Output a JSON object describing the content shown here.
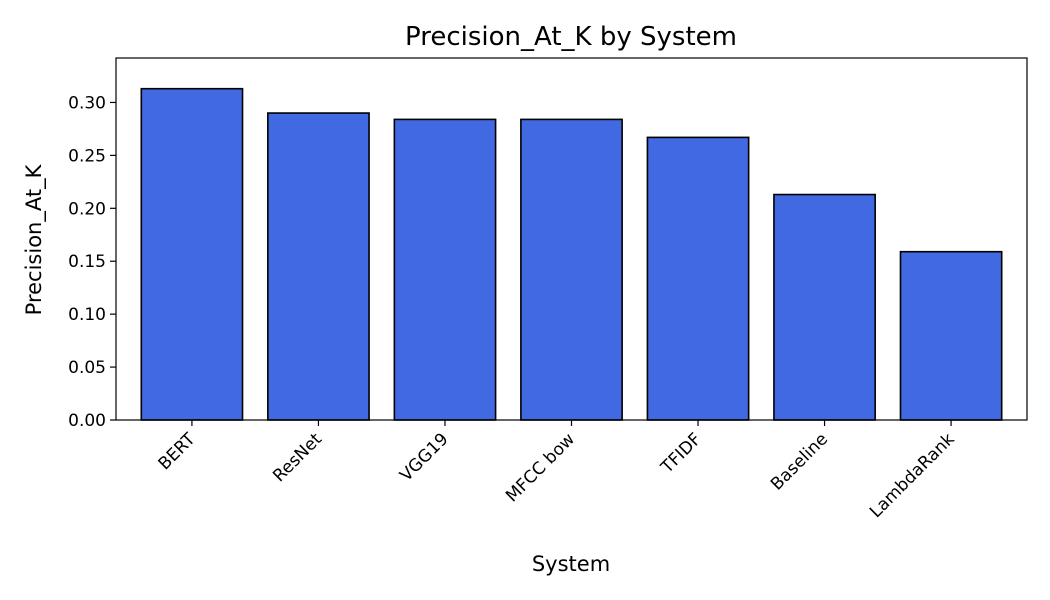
{
  "chart_data": {
    "type": "bar",
    "title": "Precision_At_K by System",
    "xlabel": "System",
    "ylabel": "Precision_At_K",
    "categories": [
      "BERT",
      "ResNet",
      "VGG19",
      "MFCC bow",
      "TFIDF",
      "Baseline",
      "LambdaRank"
    ],
    "values": [
      0.313,
      0.29,
      0.284,
      0.284,
      0.267,
      0.213,
      0.159
    ],
    "ylim": [
      0,
      0.342
    ],
    "yticks": [
      "0.00",
      "0.05",
      "0.10",
      "0.15",
      "0.20",
      "0.25",
      "0.30"
    ],
    "bar_color": "#4169e1",
    "edge_color": "#000000",
    "grid": false,
    "legend": false
  }
}
